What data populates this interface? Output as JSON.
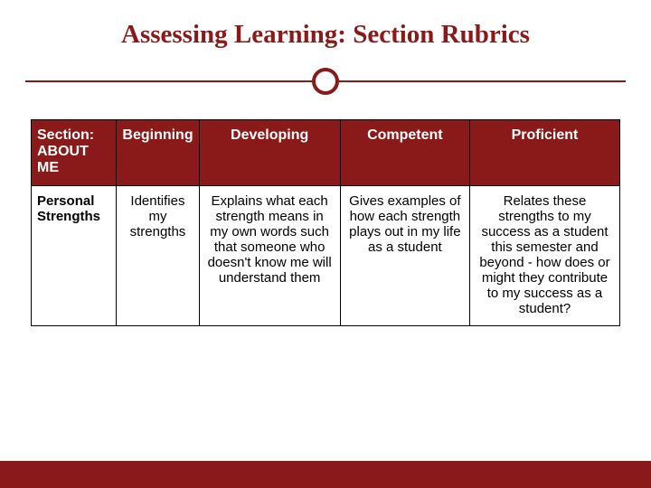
{
  "title": {
    "text": "Assessing Learning: Section Rubrics",
    "color": "#8a1a1a",
    "fontsize": 29
  },
  "divider": {
    "line_color": "#8a1a1a",
    "circle_border_color": "#8a1a1a",
    "circle_border_width": 4
  },
  "table": {
    "header_bg": "#8a1a1a",
    "header_fg": "#ffffff",
    "body_bg": "#ffffff",
    "body_fg": "#000000",
    "border_color": "#000000",
    "header_fontsize": 16,
    "body_fontsize": 15,
    "col_widths_pct": [
      14.5,
      14,
      24,
      22,
      25.5
    ],
    "columns": [
      "Section: ABOUT ME",
      "Beginning",
      "Developing",
      "Competent",
      "Proficient"
    ],
    "rows": [
      {
        "label": "Personal Strengths",
        "cells": [
          "Identifies my strengths",
          "Explains what each strength means in my own words such that someone who doesn't know me will understand them",
          "Gives examples of how each strength plays out in my life as a student",
          "Relates these strengths to my success as a student this semester and beyond - how does or might they contribute to my success as a student?"
        ]
      }
    ]
  },
  "footer": {
    "bar_color": "#8a1a1a"
  }
}
